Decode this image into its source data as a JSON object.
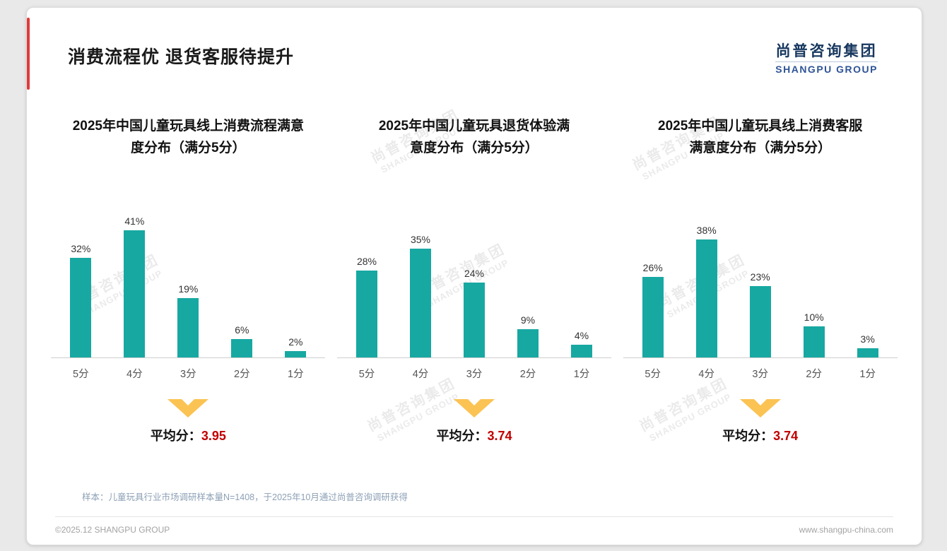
{
  "page": {
    "title": "消费流程优 退货客服待提升",
    "logo": {
      "cn": "尚普咨询集团",
      "en": "SHANGPU GROUP"
    },
    "watermark": {
      "cn": "尚普咨询集团",
      "en": "SHANGPU GROUP"
    },
    "note": "样本：儿童玩具行业市场调研样本量N=1408，于2025年10月通过尚普咨询调研获得",
    "footer_left": "©2025.12 SHANGPU GROUP",
    "footer_right": "www.shangpu-china.com"
  },
  "colors": {
    "bar": "#17a8a2",
    "arrow": "#fbc353",
    "avg_red": "#c00000"
  },
  "chart_data": [
    {
      "type": "bar",
      "title": "2025年中国儿童玩具线上消费流程满意度分布（满分5分）",
      "title_lines": [
        "2025年中国儿童玩具线上消费流程满意",
        "度分布（满分5分）"
      ],
      "categories": [
        "5分",
        "4分",
        "3分",
        "2分",
        "1分"
      ],
      "values": [
        32,
        41,
        19,
        6,
        2
      ],
      "unit": "%",
      "ylim": [
        0,
        45
      ],
      "avg_label": "平均分：",
      "avg_value": "3.95"
    },
    {
      "type": "bar",
      "title": "2025年中国儿童玩具退货体验满意度分布（满分5分）",
      "title_lines": [
        "2025年中国儿童玩具退货体验满",
        "意度分布（满分5分）"
      ],
      "categories": [
        "5分",
        "4分",
        "3分",
        "2分",
        "1分"
      ],
      "values": [
        28,
        35,
        24,
        9,
        4
      ],
      "unit": "%",
      "ylim": [
        0,
        45
      ],
      "avg_label": "平均分：",
      "avg_value": "3.74"
    },
    {
      "type": "bar",
      "title": "2025年中国儿童玩具线上消费客服满意度分布（满分5分）",
      "title_lines": [
        "2025年中国儿童玩具线上消费客服",
        "满意度分布（满分5分）"
      ],
      "categories": [
        "5分",
        "4分",
        "3分",
        "2分",
        "1分"
      ],
      "values": [
        26,
        38,
        23,
        10,
        3
      ],
      "unit": "%",
      "ylim": [
        0,
        45
      ],
      "avg_label": "平均分：",
      "avg_value": "3.74"
    }
  ]
}
